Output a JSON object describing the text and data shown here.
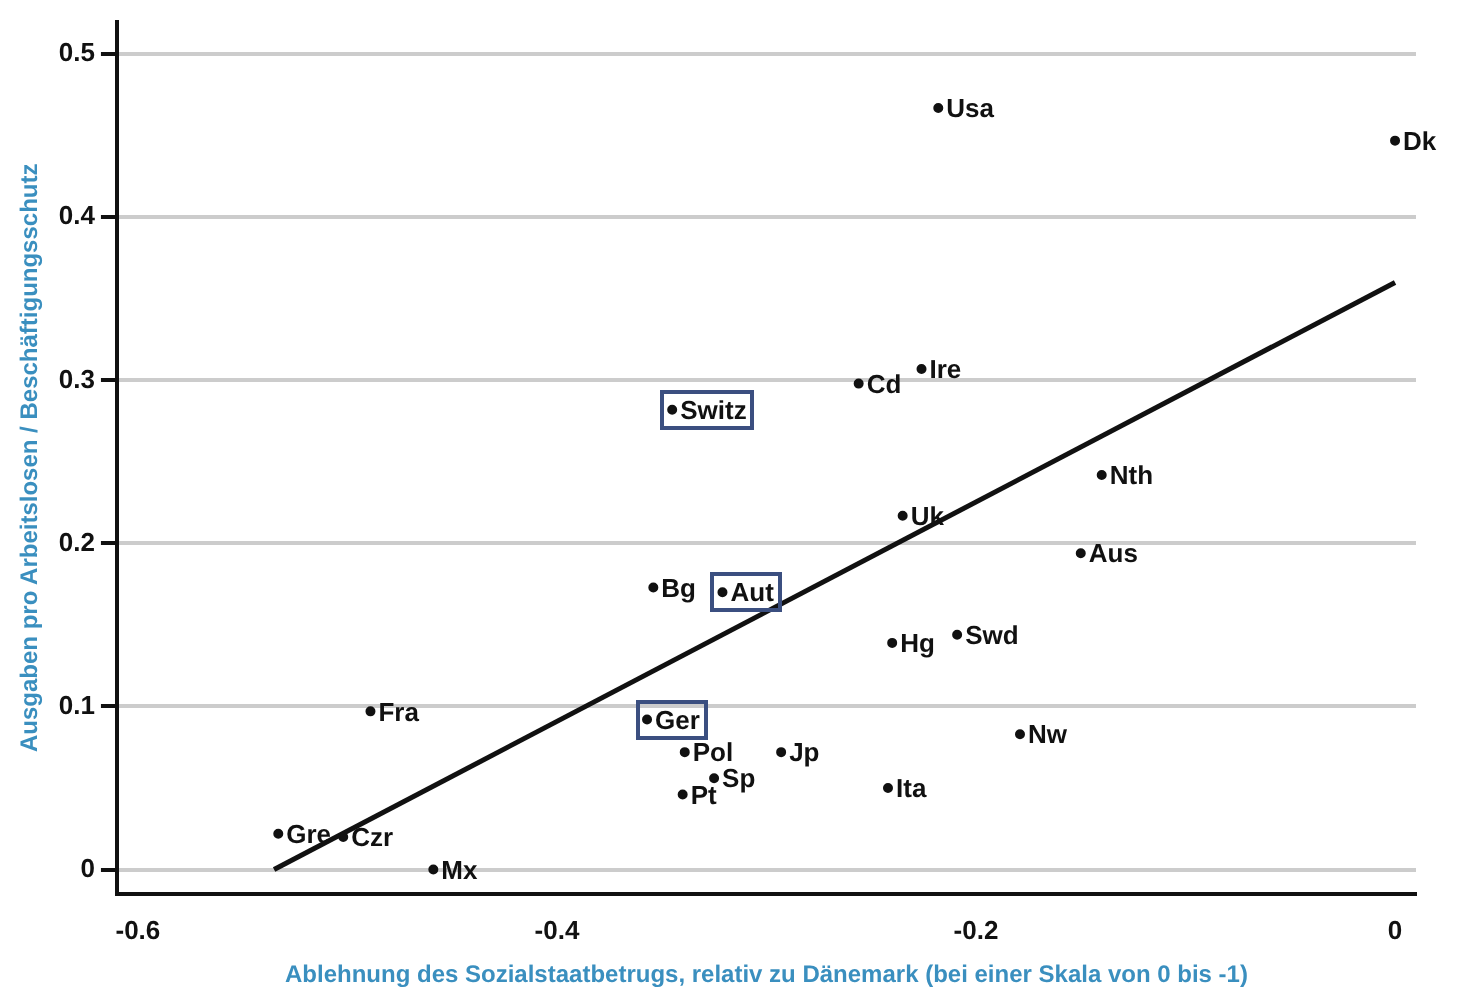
{
  "chart_data": {
    "type": "scatter",
    "xlabel": "Ablehnung des Sozialstaatbetrugs, relativ zu Dänemark (bei einer Skala von 0 bis -1)",
    "ylabel": "Ausgaben pro Arbeitslosen / Beschäftigungsschutz",
    "xlim": [
      -0.61,
      0.01
    ],
    "xticks": [
      -0.6,
      -0.4,
      -0.2,
      0
    ],
    "ylim": [
      -0.015,
      0.52
    ],
    "yticks": [
      0,
      0.1,
      0.2,
      0.3,
      0.4,
      0.5
    ],
    "grid": "y",
    "legend": false,
    "series": [
      {
        "type": "scatter",
        "marker": "circle",
        "color": "#111111",
        "x": [
          -0.218,
          0,
          -0.345,
          -0.256,
          -0.226,
          -0.14,
          -0.235,
          -0.15,
          -0.354,
          -0.321,
          -0.24,
          -0.209,
          -0.489,
          -0.357,
          -0.179,
          -0.339,
          -0.293,
          -0.325,
          -0.34,
          -0.242,
          -0.533,
          -0.502,
          -0.459
        ],
        "values": [
          0.467,
          0.447,
          0.282,
          0.298,
          0.307,
          0.242,
          0.217,
          0.194,
          0.173,
          0.17,
          0.139,
          0.144,
          0.097,
          0.092,
          0.083,
          0.072,
          0.072,
          0.056,
          0.046,
          0.05,
          0.022,
          0.02,
          0
        ],
        "value_labels": [
          "Usa",
          "Dk",
          null,
          "Cd",
          "Ire",
          "Nth",
          "Uk",
          "Aus",
          "Bg",
          null,
          "Hg",
          "Swd",
          "Fra",
          null,
          "Nw",
          "Pol",
          "Jp",
          "Sp",
          "Pt",
          "Ita",
          "Gre",
          "Czr",
          "Mx"
        ]
      },
      {
        "type": "line",
        "marker": "none",
        "color": "#111111",
        "x": [
          -0.535,
          0
        ],
        "values": [
          0,
          0.36
        ]
      }
    ],
    "annotations": [
      {
        "text": "Switz",
        "x": -0.345,
        "y": 0.282
      },
      {
        "text": "Aut",
        "x": -0.321,
        "y": 0.17
      },
      {
        "text": "Ger",
        "x": -0.357,
        "y": 0.092
      }
    ]
  }
}
